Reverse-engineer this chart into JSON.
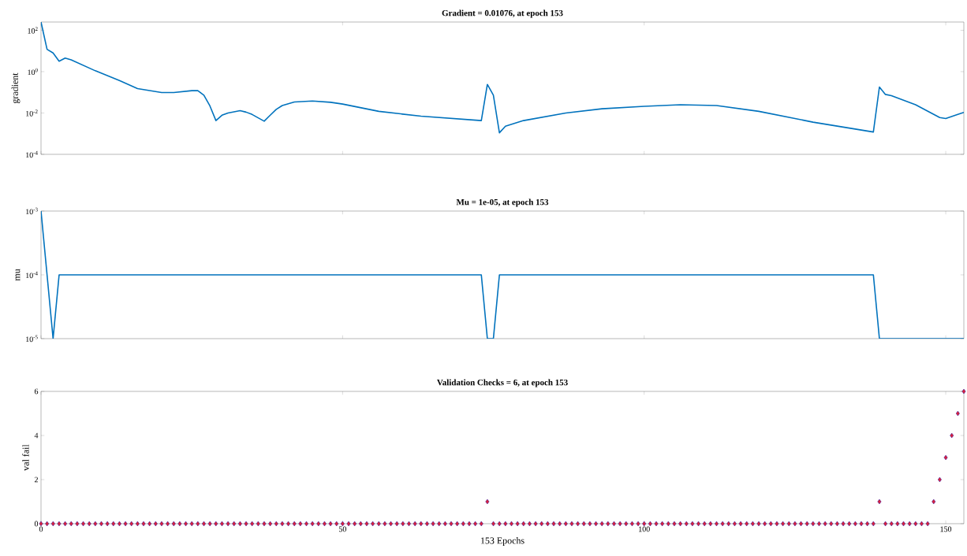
{
  "chart_data": [
    {
      "type": "line",
      "title": "Gradient = 0.01076, at epoch 153",
      "ylabel": "gradient",
      "log": true,
      "grid": false,
      "tick_labels": "y",
      "color": "#0072bd",
      "x": [
        0,
        1,
        2,
        3,
        4,
        5,
        9,
        13,
        16,
        20,
        22,
        25,
        26,
        27,
        28,
        29,
        30,
        31,
        33,
        34,
        35,
        36,
        37,
        38,
        39,
        40,
        42,
        45,
        48,
        50,
        56,
        63,
        73,
        74,
        75,
        76,
        77,
        80,
        87,
        93,
        100,
        106,
        112,
        119,
        128,
        138,
        139,
        140,
        141,
        145,
        149,
        150,
        152,
        153
      ],
      "values": [
        250,
        12,
        8,
        3.2,
        4.5,
        3.7,
        1.1,
        0.37,
        0.15,
        0.098,
        0.098,
        0.12,
        0.12,
        0.072,
        0.022,
        0.0043,
        0.0078,
        0.01,
        0.013,
        0.011,
        0.0085,
        0.0058,
        0.004,
        0.0078,
        0.015,
        0.023,
        0.034,
        0.038,
        0.033,
        0.027,
        0.012,
        0.007,
        0.0043,
        0.24,
        0.072,
        0.0011,
        0.0023,
        0.0043,
        0.01,
        0.016,
        0.021,
        0.025,
        0.023,
        0.012,
        0.0036,
        0.0012,
        0.18,
        0.079,
        0.069,
        0.025,
        0.006,
        0.0054,
        0.0085,
        0.01076
      ],
      "xlim": [
        0,
        153
      ],
      "xticks": [
        {
          "value": 0,
          "label": null
        },
        {
          "value": 50,
          "label": null
        },
        {
          "value": 100,
          "label": null
        },
        {
          "value": 150,
          "label": null
        }
      ],
      "ylim": [
        0.0001,
        250
      ],
      "yticks": [
        {
          "value": 0.0001,
          "label": "10$^{-4}$"
        },
        {
          "value": 0.01,
          "label": "10$^{-2}$"
        },
        {
          "value": 1,
          "label": "10$^{0}$"
        },
        {
          "value": 100,
          "label": "10$^{2}$"
        }
      ]
    },
    {
      "type": "line",
      "title": "Mu = 1e-05, at epoch 153",
      "ylabel": "mu",
      "log": true,
      "grid": false,
      "tick_labels": "y",
      "color": "#0072bd",
      "x": [
        0,
        1,
        2,
        3,
        73,
        74,
        75,
        76,
        138,
        139,
        153
      ],
      "values": [
        0.001,
        0.0001,
        1e-05,
        0.0001,
        0.0001,
        1e-05,
        1e-05,
        0.0001,
        0.0001,
        1e-05,
        1e-05
      ],
      "xlim": [
        0,
        153
      ],
      "xticks": [
        {
          "value": 0,
          "label": null
        },
        {
          "value": 50,
          "label": null
        },
        {
          "value": 100,
          "label": null
        },
        {
          "value": 150,
          "label": null
        }
      ],
      "ylim": [
        1e-05,
        0.001
      ],
      "yticks": [
        {
          "value": 1e-05,
          "label": "10$^{-5}$"
        },
        {
          "value": 0.0001,
          "label": "10$^{-4}$"
        },
        {
          "value": 0.001,
          "label": "10$^{-3}$"
        }
      ]
    },
    {
      "type": "scatter",
      "title": "Validation Checks = 6, at epoch 153",
      "ylabel": "val fail",
      "xlabel": "153 Epochs",
      "marker": "diamond",
      "grid": false,
      "color": "#d8213b",
      "x": [
        0,
        1,
        2,
        3,
        4,
        5,
        6,
        7,
        8,
        9,
        10,
        11,
        12,
        13,
        14,
        15,
        16,
        17,
        18,
        19,
        20,
        21,
        22,
        23,
        24,
        25,
        26,
        27,
        28,
        29,
        30,
        31,
        32,
        33,
        34,
        35,
        36,
        37,
        38,
        39,
        40,
        41,
        42,
        43,
        44,
        45,
        46,
        47,
        48,
        49,
        50,
        51,
        52,
        53,
        54,
        55,
        56,
        57,
        58,
        59,
        60,
        61,
        62,
        63,
        64,
        65,
        66,
        67,
        68,
        69,
        70,
        71,
        72,
        73,
        74,
        75,
        76,
        77,
        78,
        79,
        80,
        81,
        82,
        83,
        84,
        85,
        86,
        87,
        88,
        89,
        90,
        91,
        92,
        93,
        94,
        95,
        96,
        97,
        98,
        99,
        100,
        101,
        102,
        103,
        104,
        105,
        106,
        107,
        108,
        109,
        110,
        111,
        112,
        113,
        114,
        115,
        116,
        117,
        118,
        119,
        120,
        121,
        122,
        123,
        124,
        125,
        126,
        127,
        128,
        129,
        130,
        131,
        132,
        133,
        134,
        135,
        136,
        137,
        138,
        139,
        140,
        141,
        142,
        143,
        144,
        145,
        146,
        147,
        148,
        149,
        150,
        151,
        152,
        153
      ],
      "values": [
        0,
        0,
        0,
        0,
        0,
        0,
        0,
        0,
        0,
        0,
        0,
        0,
        0,
        0,
        0,
        0,
        0,
        0,
        0,
        0,
        0,
        0,
        0,
        0,
        0,
        0,
        0,
        0,
        0,
        0,
        0,
        0,
        0,
        0,
        0,
        0,
        0,
        0,
        0,
        0,
        0,
        0,
        0,
        0,
        0,
        0,
        0,
        0,
        0,
        0,
        0,
        0,
        0,
        0,
        0,
        0,
        0,
        0,
        0,
        0,
        0,
        0,
        0,
        0,
        0,
        0,
        0,
        0,
        0,
        0,
        0,
        0,
        0,
        0,
        1,
        0,
        0,
        0,
        0,
        0,
        0,
        0,
        0,
        0,
        0,
        0,
        0,
        0,
        0,
        0,
        0,
        0,
        0,
        0,
        0,
        0,
        0,
        0,
        0,
        0,
        0,
        0,
        0,
        0,
        0,
        0,
        0,
        0,
        0,
        0,
        0,
        0,
        0,
        0,
        0,
        0,
        0,
        0,
        0,
        0,
        0,
        0,
        0,
        0,
        0,
        0,
        0,
        0,
        0,
        0,
        0,
        0,
        0,
        0,
        0,
        0,
        0,
        0,
        0,
        1,
        0,
        0,
        0,
        0,
        0,
        0,
        0,
        0,
        1,
        2,
        3,
        4,
        5,
        6
      ],
      "xlim": [
        0,
        153
      ],
      "xticks": [
        0,
        50,
        100,
        150
      ],
      "ylim": [
        0,
        6
      ],
      "yticks": [
        0,
        2,
        4,
        6
      ]
    }
  ]
}
